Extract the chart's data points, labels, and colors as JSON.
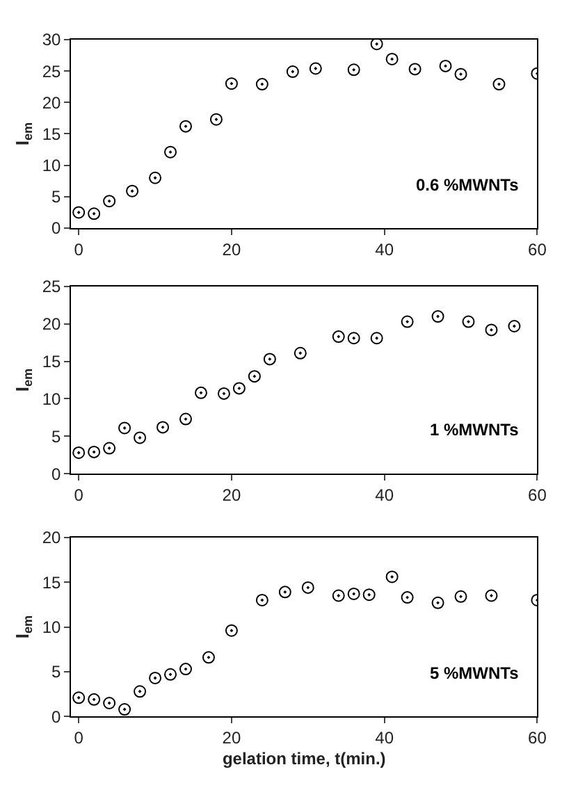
{
  "chart_data": [
    {
      "type": "scatter",
      "ylabel": "I$_{em}$",
      "annotations": [
        "0.6 %MWNTs"
      ],
      "xlim": [
        -1,
        60
      ],
      "xticks": [
        0,
        20,
        40,
        60
      ],
      "ylim": [
        0,
        30
      ],
      "yticks": [
        0,
        5,
        10,
        15,
        20,
        25,
        30
      ],
      "marker": "circle",
      "series": [
        {
          "color": "#000000",
          "x": [
            0,
            2,
            4,
            7,
            10,
            12,
            14,
            18,
            20,
            24,
            28,
            31,
            36,
            39,
            41,
            44,
            48,
            50,
            55,
            60
          ],
          "values": [
            2.5,
            2.3,
            4.3,
            5.9,
            8.0,
            12.1,
            16.2,
            17.3,
            23.0,
            22.9,
            24.9,
            25.4,
            25.2,
            29.3,
            26.9,
            25.3,
            25.8,
            24.5,
            22.9,
            24.6
          ]
        }
      ]
    },
    {
      "type": "scatter",
      "ylabel": "I$_{em}$",
      "annotations": [
        "1 %MWNTs"
      ],
      "xlim": [
        -1,
        60
      ],
      "xticks": [
        0,
        20,
        40,
        60
      ],
      "ylim": [
        0,
        25
      ],
      "yticks": [
        0,
        5,
        10,
        15,
        20,
        25
      ],
      "marker": "circle",
      "series": [
        {
          "color": "#000000",
          "x": [
            0,
            2,
            4,
            6,
            8,
            11,
            14,
            16,
            19,
            21,
            23,
            25,
            29,
            34,
            36,
            39,
            43,
            47,
            51,
            54,
            57
          ],
          "values": [
            2.8,
            2.9,
            3.4,
            6.1,
            4.8,
            6.2,
            7.3,
            10.8,
            10.7,
            11.4,
            13.0,
            15.3,
            16.1,
            18.3,
            18.1,
            18.1,
            20.3,
            21.0,
            20.3,
            19.2,
            19.7
          ]
        }
      ]
    },
    {
      "type": "scatter",
      "xlabel": "gelation time, t(min.)",
      "ylabel": "I$_{em}$",
      "annotations": [
        "5 %MWNTs"
      ],
      "xlim": [
        -1,
        60
      ],
      "xticks": [
        0,
        20,
        40,
        60
      ],
      "ylim": [
        0,
        20
      ],
      "yticks": [
        0,
        5,
        10,
        15,
        20
      ],
      "marker": "circle",
      "series": [
        {
          "color": "#000000",
          "x": [
            0,
            2,
            4,
            6,
            8,
            10,
            12,
            14,
            17,
            20,
            24,
            27,
            30,
            34,
            36,
            38,
            41,
            43,
            47,
            50,
            54,
            60
          ],
          "values": [
            2.1,
            1.9,
            1.5,
            0.8,
            2.8,
            4.3,
            4.7,
            5.3,
            6.6,
            9.6,
            13.0,
            13.9,
            14.4,
            13.5,
            13.7,
            13.6,
            15.6,
            13.3,
            12.7,
            13.4,
            13.5,
            13.0
          ]
        }
      ]
    }
  ]
}
